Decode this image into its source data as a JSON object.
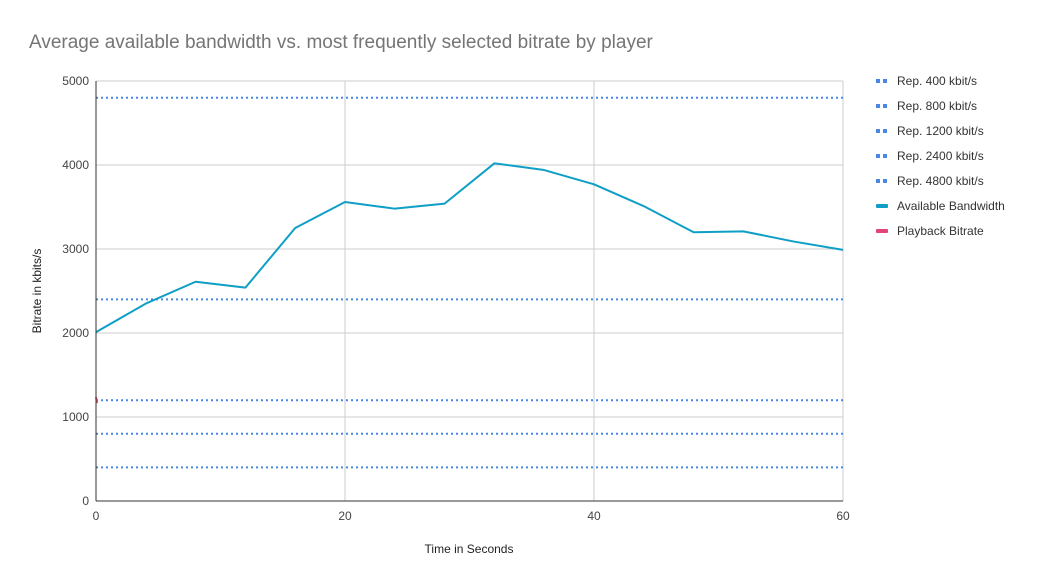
{
  "chart_data": {
    "type": "line",
    "title": "Average available bandwidth vs. most frequently selected bitrate by player",
    "xlabel": "Time in Seconds",
    "ylabel": "Bitrate in kbits/s",
    "xlim": [
      0,
      60
    ],
    "ylim": [
      0,
      5000
    ],
    "x_ticks": [
      "0",
      "20",
      "40",
      "60"
    ],
    "y_ticks": [
      "0",
      "1000",
      "2000",
      "3000",
      "4000",
      "5000"
    ],
    "grid": true,
    "legend_position": "right",
    "series": [
      {
        "name": "Rep. 400 kbit/s",
        "style": "dotted",
        "color": "#4a86e8",
        "x": [
          0,
          60
        ],
        "y": [
          400,
          400
        ]
      },
      {
        "name": "Rep. 800 kbit/s",
        "style": "dotted",
        "color": "#4a86e8",
        "x": [
          0,
          60
        ],
        "y": [
          800,
          800
        ]
      },
      {
        "name": "Rep. 1200 kbit/s",
        "style": "dotted",
        "color": "#4a86e8",
        "x": [
          0,
          60
        ],
        "y": [
          1200,
          1200
        ]
      },
      {
        "name": "Rep. 2400 kbit/s",
        "style": "dotted",
        "color": "#4a86e8",
        "x": [
          0,
          60
        ],
        "y": [
          2400,
          2400
        ]
      },
      {
        "name": "Rep. 4800 kbit/s",
        "style": "dotted",
        "color": "#4a86e8",
        "x": [
          0,
          60
        ],
        "y": [
          4800,
          4800
        ]
      },
      {
        "name": "Available Bandwidth",
        "style": "solid",
        "color": "#0f9fc6",
        "x": [
          0,
          4,
          8,
          12,
          16,
          20,
          24,
          28,
          32,
          36,
          40,
          44,
          48,
          52,
          56,
          60
        ],
        "y": [
          2010,
          2350,
          2610,
          2540,
          3250,
          3560,
          3480,
          3540,
          4020,
          3940,
          3770,
          3510,
          3200,
          3210,
          3090,
          2990
        ]
      },
      {
        "name": "Playback Bitrate",
        "style": "solid",
        "color": "#e2447a",
        "x": [
          0
        ],
        "y": [
          1200
        ]
      }
    ]
  }
}
